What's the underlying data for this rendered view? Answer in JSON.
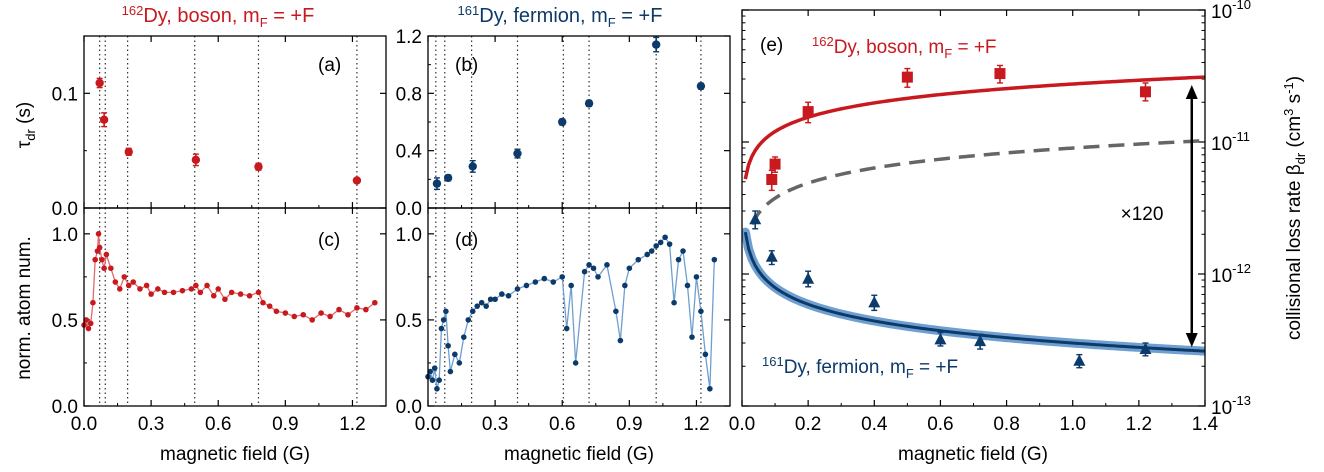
{
  "panels": {
    "a": {
      "label": "(a)"
    },
    "b": {
      "label": "(b)"
    },
    "c": {
      "label": "(c)"
    },
    "d": {
      "label": "(d)"
    },
    "e": {
      "label": "(e)",
      "factor_label": "×120"
    }
  },
  "titles": {
    "left": {
      "mass": "162",
      "text": "Dy, boson, m",
      "sub": "F",
      "tail": " = +F"
    },
    "middle": {
      "mass": "161",
      "text": "Dy, fermion, m",
      "sub": "F",
      "tail": " = +F"
    }
  },
  "labels": {
    "tau_main": "τ",
    "tau_sub": "dr",
    "tau_unit": " (s)",
    "norm": "norm. atom num.",
    "xlabel": "magnetic field (G)",
    "rate_main": "collisional loss rate β",
    "rate_sub": "dr",
    "rate_unit1": " (cm",
    "rate_sup1": "3",
    "rate_unit2": " s",
    "rate_sup2": "-1",
    "rate_unit3": ")",
    "boson_line": {
      "mass": "162",
      "text": "Dy, boson, m",
      "sub": "F",
      "tail": " = +F"
    },
    "fermion_line": {
      "mass": "161",
      "text": "Dy, fermion, m",
      "sub": "F",
      "tail": " = +F"
    }
  },
  "colors": {
    "boson": "#c8191e",
    "fermion": "#0c3a6b",
    "fermion_band": "#6f9fd0",
    "gray": "#666666",
    "dotted": "#333333"
  },
  "chart_data": [
    {
      "id": "a",
      "type": "scatter",
      "xlim": [
        0,
        1.35
      ],
      "ylim": [
        0,
        0.15
      ],
      "yticks": [
        0.0,
        0.1
      ],
      "ytick_labels": [
        "0.0",
        "0.1"
      ],
      "minor_yticks": [
        0.05
      ],
      "xticks": [
        0.0,
        0.3,
        0.6,
        0.9,
        1.2
      ],
      "vlines": [
        0.07,
        0.095,
        0.195,
        0.495,
        0.78,
        1.22
      ],
      "series": [
        {
          "x": [
            0.07,
            0.09,
            0.2,
            0.5,
            0.78,
            1.22
          ],
          "y": [
            0.109,
            0.077,
            0.049,
            0.042,
            0.036,
            0.024
          ],
          "err": [
            0.004,
            0.006,
            0.003,
            0.005,
            0.003,
            0.002
          ]
        }
      ]
    },
    {
      "id": "b",
      "type": "scatter",
      "xlim": [
        0,
        1.35
      ],
      "ylim": [
        0,
        1.2
      ],
      "yticks": [
        0.0,
        0.4,
        0.8,
        1.2
      ],
      "ytick_labels": [
        "0.0",
        "0.4",
        "0.8",
        "1.2"
      ],
      "minor_yticks": [
        0.2,
        0.6,
        1.0
      ],
      "xticks": [
        0.0,
        0.3,
        0.6,
        0.9,
        1.2
      ],
      "vlines": [
        0.035,
        0.075,
        0.195,
        0.4,
        0.605,
        0.72,
        1.02,
        1.22
      ],
      "series": [
        {
          "x": [
            0.04,
            0.09,
            0.2,
            0.4,
            0.6,
            0.72,
            1.02,
            1.22
          ],
          "y": [
            0.17,
            0.21,
            0.29,
            0.38,
            0.6,
            0.73,
            1.14,
            0.85
          ],
          "err": [
            0.04,
            0.02,
            0.04,
            0.03,
            0.02,
            0.02,
            0.05,
            0.02
          ]
        }
      ]
    },
    {
      "id": "c",
      "type": "line",
      "xlim": [
        0,
        1.35
      ],
      "ylim": [
        0,
        1.15
      ],
      "yticks": [
        0.0,
        0.5,
        1.0
      ],
      "ytick_labels": [
        "0.0",
        "0.5",
        "1.0"
      ],
      "minor_yticks": [
        0.25,
        0.75
      ],
      "xticks": [
        0.0,
        0.3,
        0.6,
        0.9,
        1.2
      ],
      "xtick_labels": [
        "0.0",
        "0.3",
        "0.6",
        "0.9",
        "1.2"
      ],
      "vlines": [
        0.07,
        0.095,
        0.195,
        0.495,
        0.78,
        1.22
      ],
      "series": [
        {
          "x": [
            0.0,
            0.01,
            0.02,
            0.03,
            0.04,
            0.05,
            0.06,
            0.065,
            0.07,
            0.08,
            0.09,
            0.1,
            0.12,
            0.14,
            0.16,
            0.18,
            0.2,
            0.22,
            0.25,
            0.28,
            0.3,
            0.33,
            0.36,
            0.4,
            0.44,
            0.48,
            0.5,
            0.52,
            0.55,
            0.58,
            0.6,
            0.63,
            0.66,
            0.7,
            0.74,
            0.78,
            0.8,
            0.83,
            0.86,
            0.9,
            0.94,
            0.98,
            1.02,
            1.06,
            1.1,
            1.14,
            1.18,
            1.22,
            1.26,
            1.3
          ],
          "y": [
            0.47,
            0.5,
            0.45,
            0.48,
            0.6,
            0.85,
            0.9,
            1.0,
            0.92,
            0.85,
            0.8,
            0.88,
            0.8,
            0.72,
            0.68,
            0.75,
            0.7,
            0.72,
            0.68,
            0.7,
            0.65,
            0.68,
            0.66,
            0.66,
            0.67,
            0.68,
            0.7,
            0.66,
            0.7,
            0.64,
            0.68,
            0.62,
            0.66,
            0.65,
            0.64,
            0.66,
            0.6,
            0.58,
            0.55,
            0.54,
            0.52,
            0.53,
            0.5,
            0.54,
            0.52,
            0.56,
            0.53,
            0.57,
            0.56,
            0.6
          ]
        }
      ]
    },
    {
      "id": "d",
      "type": "line",
      "xlim": [
        0,
        1.35
      ],
      "ylim": [
        0,
        1.15
      ],
      "yticks": [
        0.0,
        0.5,
        1.0
      ],
      "ytick_labels": [
        "0.0",
        "0.5",
        "1.0"
      ],
      "minor_yticks": [
        0.25,
        0.75
      ],
      "xticks": [
        0.0,
        0.3,
        0.6,
        0.9,
        1.2
      ],
      "xtick_labels": [
        "0.0",
        "0.3",
        "0.6",
        "0.9",
        "1.2"
      ],
      "vlines": [
        0.035,
        0.075,
        0.195,
        0.4,
        0.605,
        0.72,
        1.02,
        1.22
      ],
      "series": [
        {
          "x": [
            0.0,
            0.01,
            0.02,
            0.03,
            0.04,
            0.05,
            0.06,
            0.07,
            0.08,
            0.09,
            0.1,
            0.12,
            0.14,
            0.16,
            0.18,
            0.2,
            0.22,
            0.24,
            0.26,
            0.28,
            0.3,
            0.33,
            0.36,
            0.4,
            0.44,
            0.48,
            0.52,
            0.56,
            0.6,
            0.62,
            0.64,
            0.66,
            0.7,
            0.72,
            0.74,
            0.76,
            0.8,
            0.84,
            0.86,
            0.88,
            0.9,
            0.94,
            0.98,
            1.0,
            1.02,
            1.04,
            1.06,
            1.08,
            1.1,
            1.12,
            1.14,
            1.16,
            1.18,
            1.2,
            1.22,
            1.24,
            1.26,
            1.28
          ],
          "y": [
            0.17,
            0.2,
            0.15,
            0.22,
            0.1,
            0.15,
            0.45,
            0.5,
            0.55,
            0.35,
            0.2,
            0.3,
            0.25,
            0.4,
            0.5,
            0.55,
            0.58,
            0.6,
            0.58,
            0.62,
            0.62,
            0.65,
            0.64,
            0.68,
            0.7,
            0.72,
            0.74,
            0.72,
            0.75,
            0.45,
            0.7,
            0.25,
            0.78,
            0.82,
            0.8,
            0.75,
            0.82,
            0.55,
            0.38,
            0.7,
            0.8,
            0.85,
            0.88,
            0.9,
            0.93,
            0.95,
            0.98,
            0.94,
            0.6,
            0.85,
            0.9,
            0.7,
            0.4,
            0.75,
            0.55,
            0.3,
            0.1,
            0.85
          ]
        }
      ]
    },
    {
      "id": "e",
      "type": "scatter",
      "xlim": [
        0,
        1.4
      ],
      "yscale": "log",
      "ylim": [
        1e-13,
        1e-10
      ],
      "xticks": [
        0.0,
        0.2,
        0.4,
        0.6,
        0.8,
        1.0,
        1.2,
        1.4
      ],
      "xtick_labels": [
        "0.0",
        "0.2",
        "0.4",
        "0.6",
        "0.8",
        "1.0",
        "1.2",
        "1.4"
      ],
      "yticks": [
        1e-13,
        1e-12,
        1e-11,
        1e-10
      ],
      "ytick_exponents": [
        "-13",
        "-12",
        "-11",
        "-10"
      ],
      "ytick_base": "10",
      "series": [
        {
          "name": "162Dy, boson",
          "marker": "square",
          "color": "boson",
          "x": [
            0.09,
            0.1,
            0.2,
            0.5,
            0.78,
            1.22
          ],
          "y": [
            5.2e-12,
            6.8e-12,
            1.7e-11,
            3.1e-11,
            3.3e-11,
            2.4e-11
          ],
          "err_lo": [
            4.3e-12,
            5.9e-12,
            1.4e-11,
            2.6e-11,
            2.8e-11,
            2.05e-11
          ],
          "err_hi": [
            6.1e-12,
            7.7e-12,
            2e-11,
            3.6e-11,
            3.8e-11,
            2.8e-11
          ]
        },
        {
          "name": "161Dy, fermion",
          "marker": "triangle",
          "color": "fermion",
          "x": [
            0.04,
            0.09,
            0.2,
            0.4,
            0.6,
            0.72,
            1.02,
            1.22
          ],
          "y": [
            2.6e-12,
            1.35e-12,
            9.2e-13,
            6.1e-13,
            3.2e-13,
            3.1e-13,
            2.2e-13,
            2.7e-13
          ],
          "err_lo": [
            2.2e-12,
            1.18e-12,
            8e-13,
            5.3e-13,
            2.85e-13,
            2.7e-13,
            1.95e-13,
            2.4e-13
          ],
          "err_hi": [
            3e-12,
            1.5e-12,
            1.05e-12,
            6.9e-13,
            3.6e-13,
            3.5e-13,
            2.45e-13,
            3e-13
          ]
        }
      ],
      "fit_curves": [
        {
          "style": "solid",
          "color": "boson",
          "model": "power",
          "A": 2.75e-11,
          "p": 0.36
        },
        {
          "style": "dashed",
          "color": "gray",
          "model": "power",
          "A": 9e-12,
          "p": 0.38
        },
        {
          "style": "band",
          "color": "fermion",
          "model": "power",
          "A": 3e-13,
          "p": -0.42
        }
      ],
      "annotation": {
        "arrow_x": 1.36,
        "arrow_y": [
          2.7e-11,
          2.8e-13
        ],
        "text": "×120"
      }
    }
  ]
}
